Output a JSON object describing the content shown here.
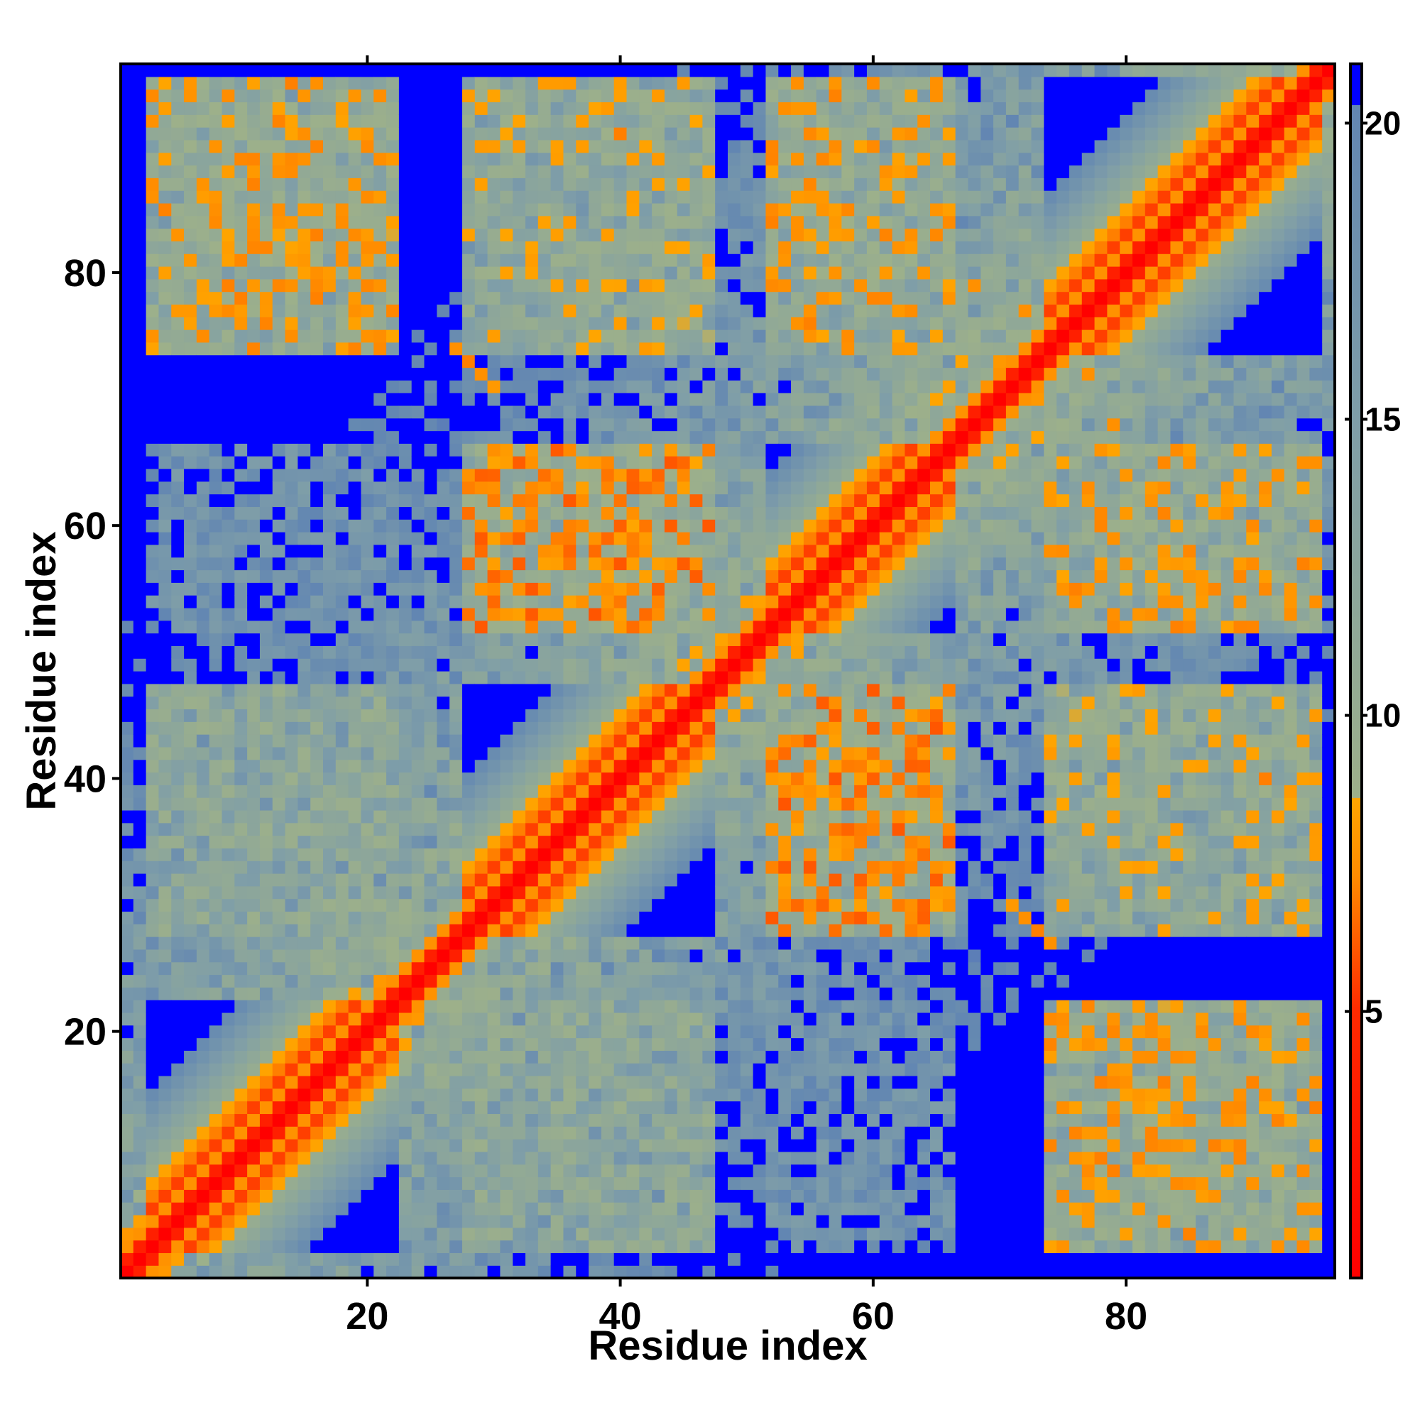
{
  "chart_data": {
    "type": "heatmap",
    "title": "",
    "xlabel": "Residue index",
    "ylabel": "Residue index",
    "n_residues": 96,
    "xlim": [
      0.5,
      96.5
    ],
    "ylim": [
      0.5,
      96.5
    ],
    "x_ticks": [
      20,
      40,
      60,
      80
    ],
    "y_ticks": [
      20,
      40,
      60,
      80
    ],
    "colorbar": {
      "range": [
        0.5,
        21.0
      ],
      "ticks": [
        5,
        10,
        15,
        20
      ],
      "stops": [
        {
          "value": 0.5,
          "color": "#ff0000"
        },
        {
          "value": 5.0,
          "color": "#ff2a00"
        },
        {
          "value": 7.3,
          "color": "#ff8c00"
        },
        {
          "value": 8.6,
          "color": "#ffa500"
        },
        {
          "value": 8.61,
          "color": "#9db08a"
        },
        {
          "value": 15.0,
          "color": "#7f9ea8"
        },
        {
          "value": 20.3,
          "color": "#6286b2"
        },
        {
          "value": 20.31,
          "color": "#0000ff"
        },
        {
          "value": 21.0,
          "color": "#0000ff"
        }
      ]
    },
    "structure": {
      "distance_matrix": "symmetric pairwise residue distance map",
      "helices": [
        [
          3,
          22
        ],
        [
          28,
          47
        ],
        [
          52,
          66
        ],
        [
          74,
          95
        ]
      ],
      "contact_pairs": [
        {
          "i": 28,
          "j": 73,
          "distance": 7.0
        },
        {
          "i": 27,
          "j": 74,
          "distance": 7.5
        },
        {
          "i": 29,
          "j": 72,
          "distance": 7.5
        },
        {
          "i": 30,
          "j": 71,
          "distance": 8.0
        },
        {
          "i": 62,
          "j": 33,
          "distance": 7.0
        },
        {
          "i": 58,
          "j": 34,
          "distance": 7.5
        },
        {
          "i": 40,
          "j": 91,
          "distance": 7.0
        },
        {
          "i": 79,
          "j": 68,
          "distance": 7.5
        },
        {
          "i": 72,
          "j": 77,
          "distance": 7.5
        },
        {
          "i": 15,
          "j": 85,
          "distance": 8.0
        },
        {
          "i": 19,
          "j": 80,
          "distance": 8.0
        },
        {
          "i": 11,
          "j": 88,
          "distance": 8.0
        }
      ]
    }
  }
}
